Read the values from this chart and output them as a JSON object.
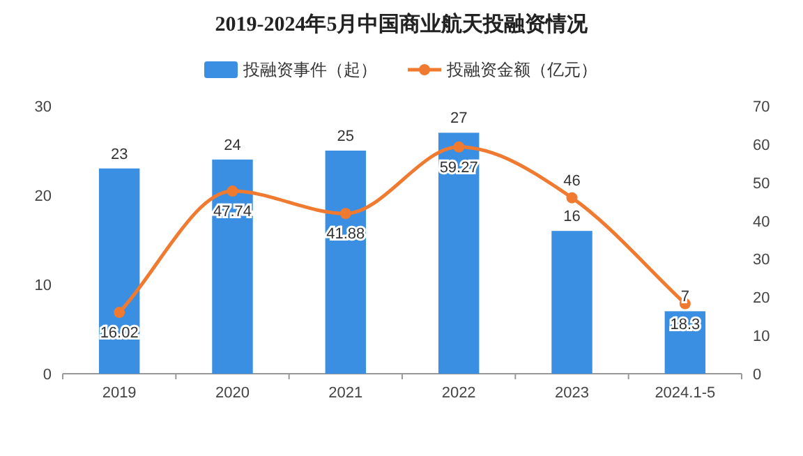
{
  "chart_data": {
    "type": "bar",
    "title": "2019-2024年5月中国商业航天投融资情况",
    "categories": [
      "2019",
      "2020",
      "2021",
      "2022",
      "2023",
      "2024.1-5"
    ],
    "series": [
      {
        "name": "投融资事件（起）",
        "color": "#3b8fe3",
        "values": [
          23,
          24,
          25,
          27,
          16,
          7
        ]
      },
      {
        "name": "投融资金额（亿元）",
        "type": "line",
        "axis": "y2",
        "color": "#f07a30",
        "values": [
          16.02,
          47.74,
          41.88,
          59.27,
          46,
          18.3
        ]
      }
    ],
    "ylim": [
      0,
      30
    ],
    "yticks": [
      0,
      10,
      20,
      30
    ],
    "y2lim": [
      0,
      70
    ],
    "y2ticks": [
      0,
      10,
      20,
      30,
      40,
      50,
      60,
      70
    ],
    "legend": "top",
    "data_labels": true,
    "marker": "circle"
  }
}
